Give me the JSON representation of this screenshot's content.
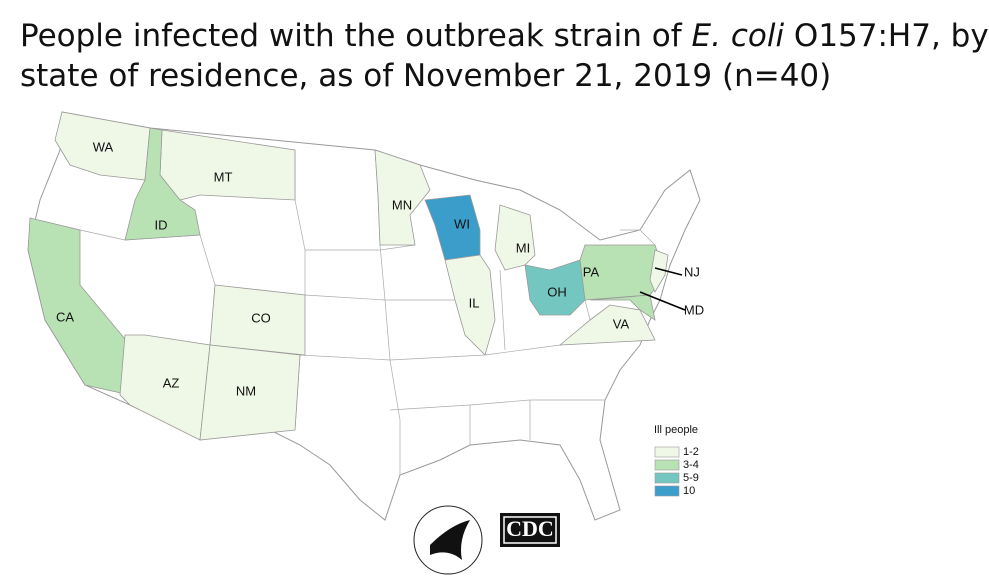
{
  "title": {
    "line1": [
      "People infected with the outbreak strain of ",
      "E. coli",
      " O157:H7, by"
    ],
    "line2": "state of residence, as of November 21, 2019 (n=40)"
  },
  "states": [
    {
      "abbr": "WA",
      "range": "1-2"
    },
    {
      "abbr": "MT",
      "range": "1-2"
    },
    {
      "abbr": "ID",
      "range": "3-4"
    },
    {
      "abbr": "CA",
      "range": "3-4"
    },
    {
      "abbr": "CO",
      "range": "1-2"
    },
    {
      "abbr": "AZ",
      "range": "1-2"
    },
    {
      "abbr": "NM",
      "range": "1-2"
    },
    {
      "abbr": "MN",
      "range": "1-2"
    },
    {
      "abbr": "WI",
      "range": "10"
    },
    {
      "abbr": "MI",
      "range": "1-2"
    },
    {
      "abbr": "IL",
      "range": "1-2"
    },
    {
      "abbr": "OH",
      "range": "5-9"
    },
    {
      "abbr": "PA",
      "range": "3-4"
    },
    {
      "abbr": "NJ",
      "range": "1-2"
    },
    {
      "abbr": "MD",
      "range": "3-4"
    },
    {
      "abbr": "VA",
      "range": "1-2"
    }
  ],
  "legend": {
    "title": "Ill people",
    "items": [
      {
        "label": "1-2",
        "color": "#eff8e6"
      },
      {
        "label": "3-4",
        "color": "#b9e2b4"
      },
      {
        "label": "5-9",
        "color": "#74c7c0"
      },
      {
        "label": "10",
        "color": "#3b9dca"
      }
    ]
  },
  "logos": {
    "cdc": "CDC"
  }
}
